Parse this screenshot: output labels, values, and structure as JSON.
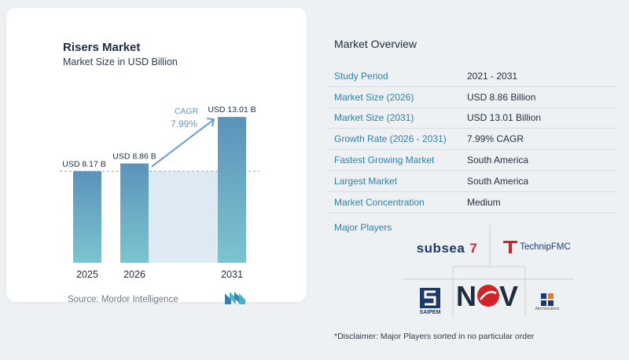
{
  "chart_card": {
    "title": "Risers Market",
    "subtitle": "Market Size in USD Billion",
    "source": "Source: Mordor Intelligence"
  },
  "chart_data": {
    "type": "bar",
    "categories": [
      "2025",
      "2026",
      "2031"
    ],
    "values": [
      8.17,
      8.86,
      13.01
    ],
    "value_labels": [
      "USD 8.17 B",
      "USD 8.86 B",
      "USD 13.01 B"
    ],
    "title": "Risers Market",
    "subtitle": "Market Size in USD Billion",
    "cagr_label": "CAGR",
    "cagr_value": "7.99%",
    "ylim": [
      0,
      14
    ],
    "grid": false,
    "colors": {
      "bar_top": "#5b93ba",
      "bar_bottom": "#7cc4cf",
      "band": "#dde9f3",
      "arrow": "#6b9ec2",
      "cagr_text": "#6f94b8"
    }
  },
  "overview": {
    "title": "Market Overview",
    "rows": [
      {
        "key": "Study Period",
        "value": "2021 - 2031"
      },
      {
        "key": "Market Size (2026)",
        "value": "USD 8.86 Billion"
      },
      {
        "key": "Market Size (2031)",
        "value": "USD 13.01 Billion"
      },
      {
        "key": "Growth Rate (2026 - 2031)",
        "value": "7.99% CAGR"
      },
      {
        "key": "Fastest Growing Market",
        "value": "South America"
      },
      {
        "key": "Largest Market",
        "value": "South America"
      },
      {
        "key": "Market Concentration",
        "value": "Medium"
      }
    ],
    "players_title": "Major Players",
    "players": {
      "subsea7": {
        "main": "subsea",
        "num": "7"
      },
      "technip": "TechnipFMC",
      "saipem": "SAIPEM",
      "nov": "NOV",
      "aker": "AkerSolutions"
    },
    "disclaimer": "*Disclaimer: Major Players sorted in no particular order"
  }
}
